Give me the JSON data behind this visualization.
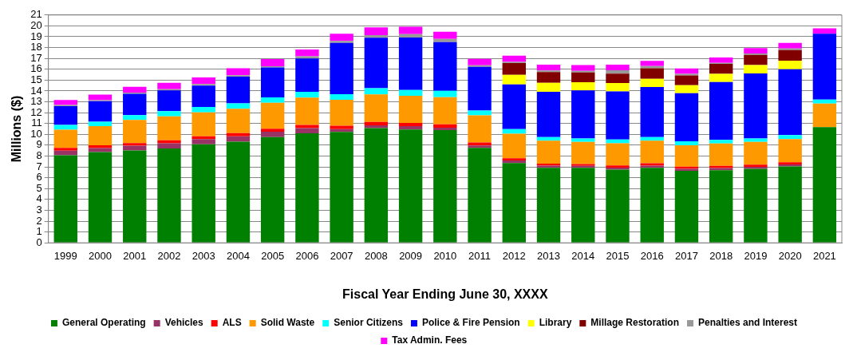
{
  "chart_data": {
    "type": "bar",
    "stacked": true,
    "xlabel": "Fiscal Year Ending June 30, XXXX",
    "ylabel": "Millions ($)",
    "categories": [
      "1999",
      "2000",
      "2001",
      "2002",
      "2003",
      "2004",
      "2005",
      "2006",
      "2007",
      "2008",
      "2009",
      "2010",
      "2011",
      "2012",
      "2013",
      "2014",
      "2015",
      "2016",
      "2017",
      "2018",
      "2019",
      "2020",
      "2021"
    ],
    "ylim": [
      0,
      21
    ],
    "yticks": [
      0,
      1,
      2,
      3,
      4,
      5,
      6,
      7,
      8,
      9,
      10,
      11,
      12,
      13,
      14,
      15,
      16,
      17,
      18,
      19,
      20,
      21
    ],
    "grid": "y",
    "legend": "bottom",
    "series": [
      {
        "name": "General Operating",
        "color": "#008000",
        "values": [
          8.07,
          8.36,
          8.52,
          8.7,
          9.09,
          9.32,
          9.75,
          10.09,
          10.23,
          10.57,
          10.45,
          10.39,
          8.75,
          7.36,
          6.91,
          6.91,
          6.75,
          6.91,
          6.64,
          6.7,
          6.82,
          7.05,
          10.66
        ]
      },
      {
        "name": "Vehicles",
        "color": "#993366",
        "values": [
          0.43,
          0.37,
          0.43,
          0.48,
          0.48,
          0.5,
          0.5,
          0.48,
          0.25,
          0.27,
          0.3,
          0.22,
          0.23,
          0.23,
          0.2,
          0.18,
          0.18,
          0.2,
          0.18,
          0.19,
          0.18,
          0.18,
          null
        ]
      },
      {
        "name": "ALS",
        "color": "#ff0000",
        "values": [
          0.25,
          0.27,
          0.25,
          0.27,
          0.25,
          0.29,
          0.27,
          0.29,
          0.32,
          0.3,
          0.3,
          0.32,
          0.27,
          0.21,
          0.19,
          0.18,
          0.21,
          0.23,
          0.2,
          0.2,
          0.2,
          0.2,
          null
        ]
      },
      {
        "name": "Solid Waste",
        "color": "#ff9900",
        "values": [
          1.68,
          1.75,
          2.12,
          2.21,
          2.2,
          2.25,
          2.39,
          2.53,
          2.38,
          2.54,
          2.5,
          2.5,
          2.5,
          2.25,
          2.11,
          2.03,
          2.04,
          2.07,
          1.98,
          2.07,
          2.1,
          2.14,
          2.18
        ]
      },
      {
        "name": "Senior Citizens",
        "color": "#00ffff",
        "values": [
          0.43,
          0.41,
          0.45,
          0.48,
          0.5,
          0.5,
          0.5,
          0.54,
          0.52,
          0.57,
          0.54,
          0.59,
          0.45,
          0.43,
          0.34,
          0.31,
          0.34,
          0.34,
          0.36,
          0.32,
          0.31,
          0.36,
          0.36
        ]
      },
      {
        "name": "Police & Fire Pension",
        "color": "#0000ff",
        "values": [
          1.73,
          1.89,
          1.96,
          1.91,
          1.98,
          2.46,
          2.75,
          3.07,
          4.73,
          4.66,
          4.84,
          4.48,
          4.03,
          4.13,
          4.18,
          4.44,
          4.43,
          4.61,
          4.44,
          5.34,
          6.0,
          6.07,
          6.07
        ]
      },
      {
        "name": "Library",
        "color": "#ffff00",
        "values": [
          null,
          null,
          null,
          null,
          null,
          null,
          null,
          null,
          null,
          null,
          null,
          null,
          null,
          0.87,
          0.82,
          0.75,
          0.78,
          0.75,
          0.72,
          0.75,
          0.78,
          0.8,
          null
        ]
      },
      {
        "name": "Millage Restoration",
        "color": "#800000",
        "values": [
          null,
          null,
          null,
          null,
          null,
          null,
          null,
          null,
          null,
          null,
          null,
          null,
          null,
          1.09,
          1.0,
          0.9,
          0.86,
          0.98,
          0.91,
          0.93,
          0.93,
          0.97,
          null
        ]
      },
      {
        "name": "Penalties and Interest",
        "color": "#999999",
        "values": [
          0.11,
          0.09,
          0.11,
          0.11,
          0.14,
          0.13,
          0.11,
          0.2,
          0.18,
          0.23,
          0.3,
          0.3,
          0.13,
          0.11,
          0.14,
          0.16,
          0.32,
          0.21,
          0.14,
          0.09,
          0.13,
          0.14,
          null
        ]
      },
      {
        "name": "Tax Admin. Fees",
        "color": "#ff00ff",
        "values": [
          0.46,
          0.52,
          0.55,
          0.59,
          0.61,
          0.64,
          0.66,
          0.62,
          0.66,
          0.72,
          0.68,
          0.65,
          0.59,
          0.57,
          0.54,
          0.53,
          0.52,
          0.47,
          0.5,
          0.5,
          0.5,
          0.52,
          0.5
        ]
      }
    ]
  }
}
